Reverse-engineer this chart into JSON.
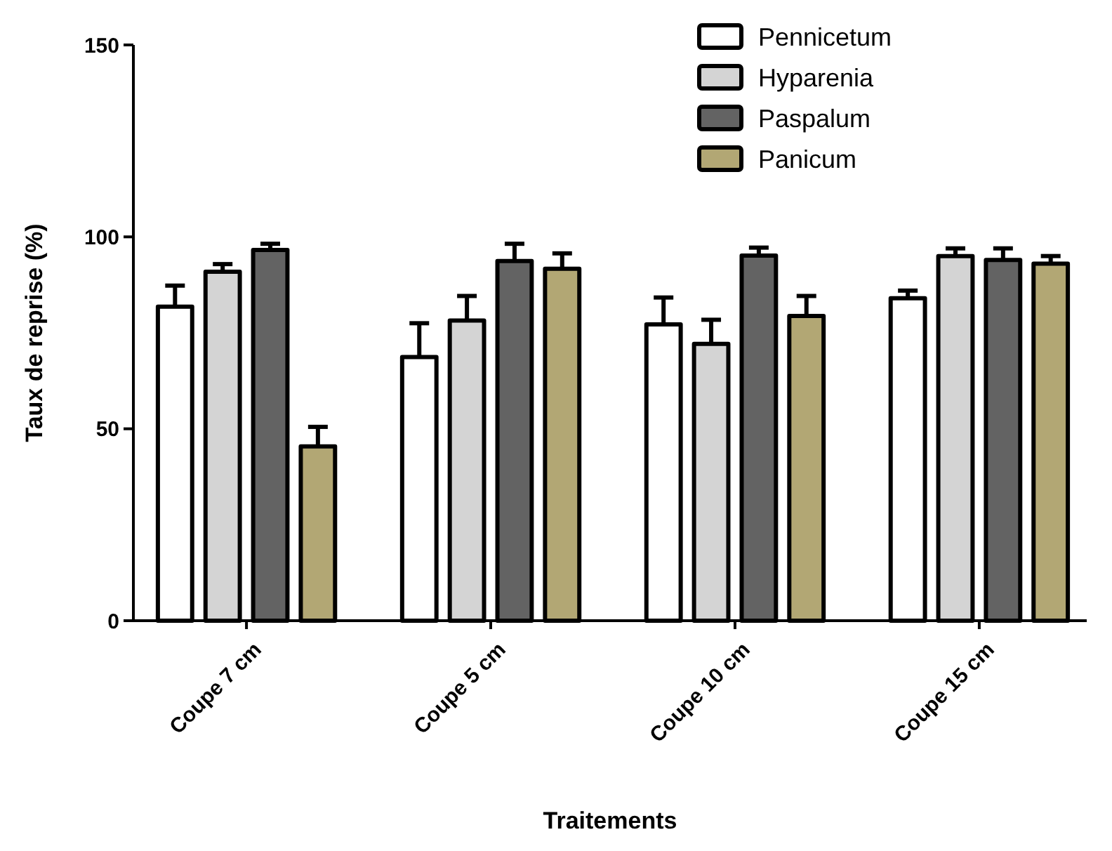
{
  "chart_data": {
    "type": "bar",
    "xlabel": "Traitements",
    "ylabel": "Taux de reprise (%)",
    "categories": [
      "Coupe 7 cm",
      "Coupe 5 cm",
      "Coupe 10 cm",
      "Coupe 15 cm"
    ],
    "ylim": [
      0,
      150
    ],
    "yticks": [
      0,
      50,
      100,
      150
    ],
    "grid": false,
    "legend": "top right",
    "series": [
      {
        "name": "Pennicetum",
        "color": "#ffffff",
        "values": [
          81.8,
          68.7,
          77.2,
          84
        ],
        "errors": [
          [
            81.8,
            87.3
          ],
          [
            68.7,
            77.5
          ],
          [
            77.2,
            84.2
          ],
          [
            84,
            86
          ]
        ]
      },
      {
        "name": "Hyparenia",
        "color": "#d4d4d4",
        "values": [
          90.9,
          78.2,
          72.1,
          95
        ],
        "errors": [
          [
            90.9,
            92.9
          ],
          [
            78.2,
            84.6
          ],
          [
            72.1,
            78.4
          ],
          [
            95,
            97
          ]
        ]
      },
      {
        "name": "Paspalum",
        "color": "#636363",
        "values": [
          96.6,
          93.7,
          95.1,
          94
        ],
        "errors": [
          [
            96.6,
            98.2
          ],
          [
            93.7,
            98.2
          ],
          [
            95.1,
            97.2
          ],
          [
            94,
            97
          ]
        ]
      },
      {
        "name": "Panicum",
        "color": "#b2a774",
        "values": [
          45.4,
          91.7,
          79.4,
          93
        ],
        "errors": [
          [
            45.4,
            50.5
          ],
          [
            91.7,
            95.7
          ],
          [
            79.4,
            84.6
          ],
          [
            93,
            95
          ]
        ]
      }
    ]
  }
}
